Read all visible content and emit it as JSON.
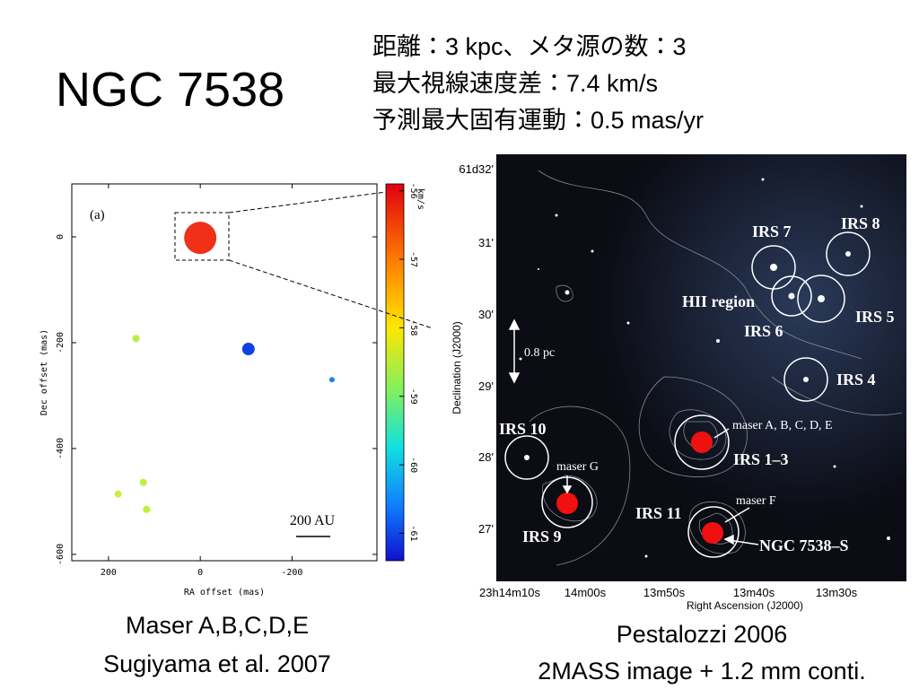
{
  "slide": {
    "title": "NGC 7538",
    "info": [
      "距離：3 kpc、メタ源の数：3",
      "最大視線速度差：7.4 km/s",
      "予測最大固有運動：0.5 mas/yr"
    ]
  },
  "chart_data": {
    "type": "scatter",
    "panel_label": "(a)",
    "x_label": "RA offset (mas)",
    "y_label": "Dec offset (mas)",
    "x": [
      0,
      -105,
      -287,
      140,
      124,
      179,
      117
    ],
    "y": [
      -2,
      -212,
      -270,
      -192,
      -464,
      -486,
      -515
    ],
    "sizes": [
      18,
      7,
      3,
      4,
      4,
      4,
      4
    ],
    "colors": [
      "#f03018",
      "#1040e0",
      "#2080f0",
      "#b8f040",
      "#c0f040",
      "#c8f040",
      "#c0f040"
    ],
    "xlim": [
      280,
      -385
    ],
    "ylim": [
      -612,
      100
    ],
    "xticks": [
      200,
      0,
      -200
    ],
    "yticks": [
      0,
      -200,
      -400,
      -600
    ],
    "colorbar_label": "km/s",
    "clim": [
      -61.4,
      -55.9
    ],
    "cticks": [
      -56,
      -57,
      -58,
      -59,
      -60,
      -61
    ],
    "scale_bar": "200 AU",
    "grid": false,
    "caption": [
      "Maser A,B,C,D,E",
      "Sugiyama et al. 2007"
    ]
  },
  "image_figure": {
    "y_ticks": [
      "61d32'",
      "31'",
      "30'",
      "29'",
      "28'",
      "27'"
    ],
    "x_ticks": [
      "23h14m10s",
      "14m00s",
      "13m50s",
      "13m40s",
      "13m30s"
    ],
    "x_label": "Right Ascension (J2000)",
    "y_label": "Declination (J2000)",
    "labels": [
      "IRS 8",
      "IRS 7",
      "HII region",
      "IRS 5",
      "IRS 6",
      "IRS 4",
      "0.8 pc",
      "IRS 10",
      "maser A, B, C, D, E",
      "IRS 1–3",
      "maser G",
      "IRS 9",
      "maser F",
      "IRS 11",
      "NGC 7538–S"
    ],
    "caption": [
      "Pestalozzi 2006",
      "2MASS image + 1.2 mm conti."
    ]
  }
}
